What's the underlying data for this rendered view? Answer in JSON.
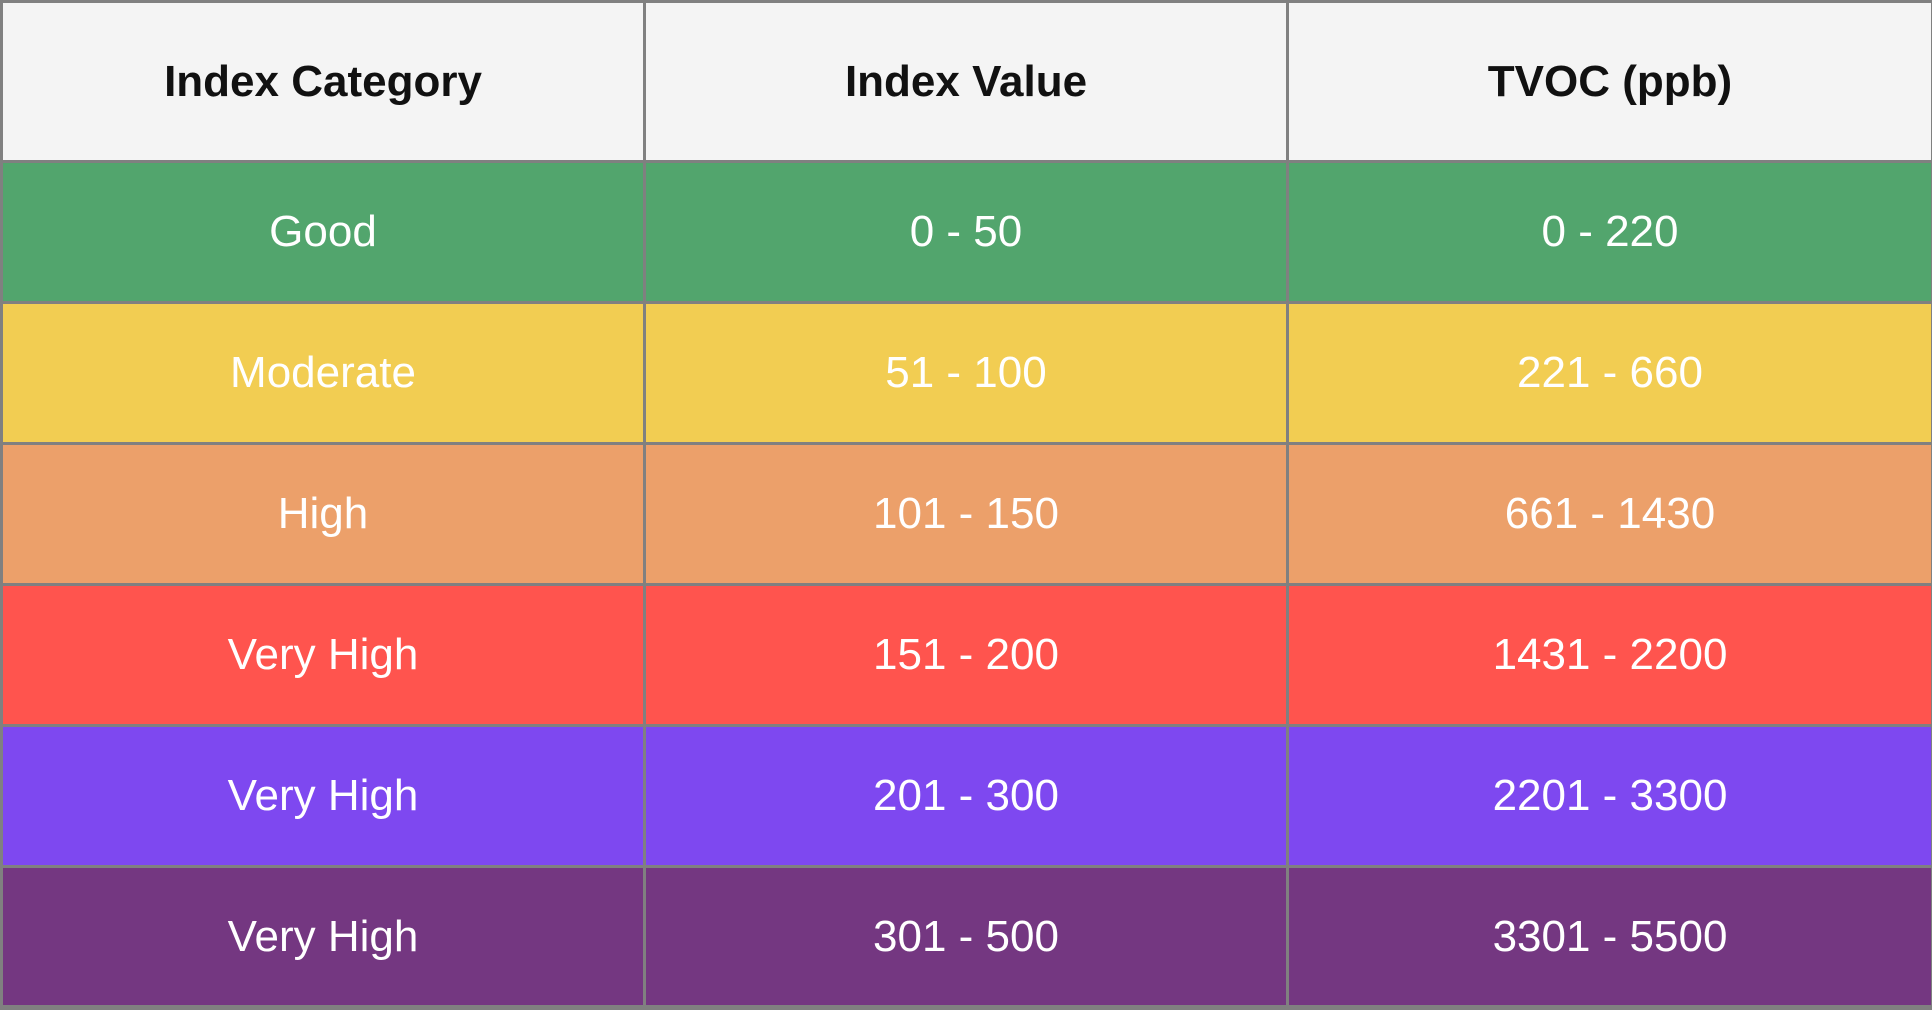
{
  "table": {
    "headers": [
      "Index Category",
      "Index Value",
      "TVOC (ppb)"
    ],
    "rows": [
      {
        "category": "Good",
        "index": "0 - 50",
        "tvoc": "0 - 220",
        "color": "#52a56d"
      },
      {
        "category": "Moderate",
        "index": "51 - 100",
        "tvoc": "221 - 660",
        "color": "#f2cd52"
      },
      {
        "category": "High",
        "index": "101 - 150",
        "tvoc": "661 - 1430",
        "color": "#eca06a"
      },
      {
        "category": "Very High",
        "index": "151 - 200",
        "tvoc": "1431 - 2200",
        "color": "#ff544e"
      },
      {
        "category": "Very High",
        "index": "201 - 300",
        "tvoc": "2201 - 3300",
        "color": "#7e48f0"
      },
      {
        "category": "Very High",
        "index": "301 - 500",
        "tvoc": "3301 - 5500",
        "color": "#743781"
      }
    ]
  }
}
